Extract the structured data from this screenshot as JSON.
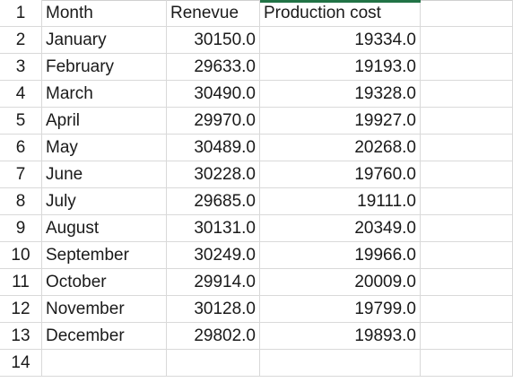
{
  "columns": {
    "month": "Month",
    "revenue": "Renevue",
    "cost": "Production cost"
  },
  "row_numbers": [
    "1",
    "2",
    "3",
    "4",
    "5",
    "6",
    "7",
    "8",
    "9",
    "10",
    "11",
    "12",
    "13",
    "14"
  ],
  "rows": [
    {
      "month": "January",
      "revenue": "30150.0",
      "cost": "19334.0"
    },
    {
      "month": "February",
      "revenue": "29633.0",
      "cost": "19193.0"
    },
    {
      "month": "March",
      "revenue": "30490.0",
      "cost": "19328.0"
    },
    {
      "month": "April",
      "revenue": "29970.0",
      "cost": "19927.0"
    },
    {
      "month": "May",
      "revenue": "30489.0",
      "cost": "20268.0"
    },
    {
      "month": "June",
      "revenue": "30228.0",
      "cost": "19760.0"
    },
    {
      "month": "July",
      "revenue": "29685.0",
      "cost": "19111.0"
    },
    {
      "month": "August",
      "revenue": "30131.0",
      "cost": "20349.0"
    },
    {
      "month": "September",
      "revenue": "30249.0",
      "cost": "19966.0"
    },
    {
      "month": "October",
      "revenue": "29914.0",
      "cost": "20009.0"
    },
    {
      "month": "November",
      "revenue": "30128.0",
      "cost": "19799.0"
    },
    {
      "month": "December",
      "revenue": "29802.0",
      "cost": "19893.0"
    }
  ],
  "colors": {
    "selection_accent": "#217346",
    "gridline": "#d9d9d9"
  }
}
